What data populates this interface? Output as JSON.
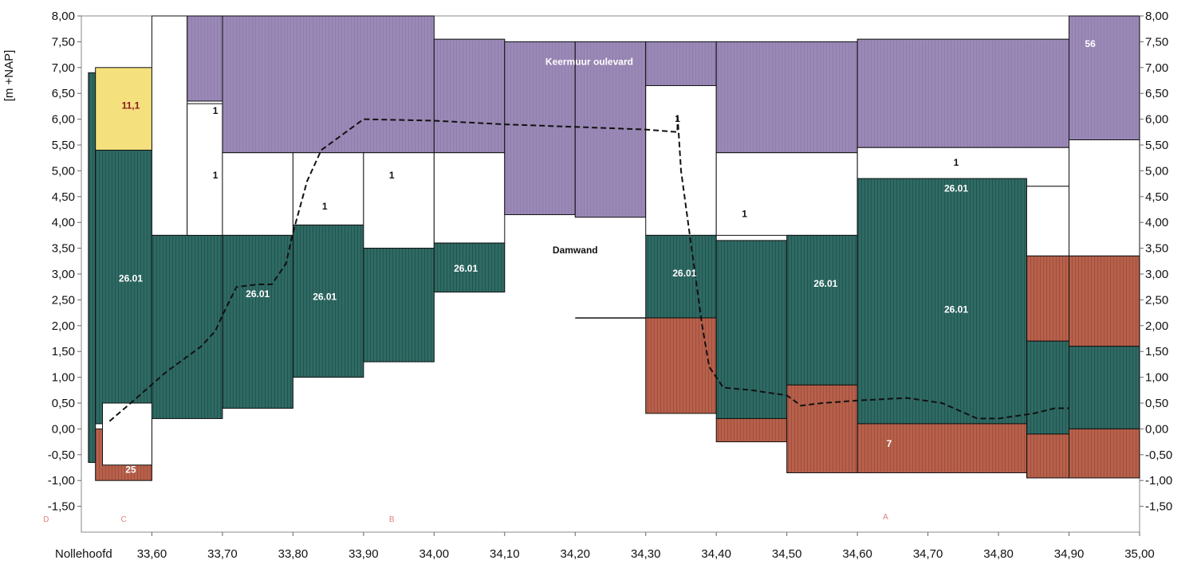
{
  "chart_data": {
    "type": "area",
    "ylabel": "[m +NAP]",
    "x_start_label": "Nollehoofd",
    "xlim": [
      33.5,
      35.0
    ],
    "ylim": [
      -2.0,
      8.0
    ],
    "x_ticks": [
      "33,60",
      "33,70",
      "33,80",
      "33,90",
      "34,00",
      "34,10",
      "34,20",
      "34,30",
      "34,40",
      "34,50",
      "34,60",
      "34,70",
      "34,80",
      "34,90",
      "35,00"
    ],
    "y_ticks": [
      "8,00",
      "7,50",
      "7,00",
      "6,50",
      "6,00",
      "5,50",
      "5,00",
      "4,50",
      "4,00",
      "3,50",
      "3,00",
      "2,50",
      "2,00",
      "1,50",
      "1,00",
      "0,50",
      "0,00",
      "-0,50",
      "-1,00",
      "-1,50"
    ],
    "colors": {
      "26.01": "#2e6a64",
      "clay": "#b7604b",
      "keermuur": "#9a88b6",
      "yellow": "#f5e07e",
      "fill_1": "#ffffff",
      "outline": "#111111",
      "hatch": "#1a3e3a",
      "zone_text": "#e08080"
    },
    "layers": [
      {
        "mat": "26.01",
        "x0": 33.51,
        "x1": 33.52,
        "top": 6.9,
        "bot": -0.65
      },
      {
        "mat": "yellow",
        "x0": 33.52,
        "x1": 33.6,
        "top": 7.0,
        "bot": 5.25
      },
      {
        "mat": "26.01",
        "x0": 33.52,
        "x1": 33.6,
        "top": 5.4,
        "bot": 0.1
      },
      {
        "mat": "clay",
        "x0": 33.52,
        "x1": 33.6,
        "top": 0.0,
        "bot": -1.0
      },
      {
        "mat": "fill_1",
        "x0": 33.53,
        "x1": 33.6,
        "top": 0.5,
        "bot": -0.7
      },
      {
        "mat": "fill_1",
        "x0": 33.6,
        "x1": 33.65,
        "top": 8.0,
        "bot": 3.75
      },
      {
        "mat": "26.01",
        "x0": 33.6,
        "x1": 33.7,
        "top": 3.75,
        "bot": 0.2
      },
      {
        "mat": "fill_1",
        "x0": 33.65,
        "x1": 33.7,
        "top": 6.3,
        "bot": 3.75
      },
      {
        "mat": "keermuur",
        "x0": 33.65,
        "x1": 33.8,
        "top": 8.0,
        "bot": 6.35
      },
      {
        "mat": "keermuur",
        "x0": 33.7,
        "x1": 34.0,
        "top": 8.0,
        "bot": 5.35
      },
      {
        "mat": "fill_1",
        "x0": 33.7,
        "x1": 33.8,
        "top": 5.35,
        "bot": 3.75
      },
      {
        "mat": "26.01",
        "x0": 33.7,
        "x1": 33.8,
        "top": 3.75,
        "bot": 0.4
      },
      {
        "mat": "fill_1",
        "x0": 33.8,
        "x1": 33.9,
        "top": 5.35,
        "bot": 3.95
      },
      {
        "mat": "26.01",
        "x0": 33.8,
        "x1": 33.9,
        "top": 3.95,
        "bot": 1.0
      },
      {
        "mat": "fill_1",
        "x0": 33.9,
        "x1": 34.0,
        "top": 5.35,
        "bot": 3.5
      },
      {
        "mat": "26.01",
        "x0": 33.9,
        "x1": 34.0,
        "top": 3.5,
        "bot": 1.3
      },
      {
        "mat": "keermuur",
        "x0": 34.0,
        "x1": 34.1,
        "top": 7.55,
        "bot": 5.35
      },
      {
        "mat": "fill_1",
        "x0": 34.0,
        "x1": 34.1,
        "top": 5.35,
        "bot": 3.6
      },
      {
        "mat": "26.01",
        "x0": 34.0,
        "x1": 34.1,
        "top": 3.6,
        "bot": 2.65
      },
      {
        "mat": "keermuur",
        "x0": 34.1,
        "x1": 34.2,
        "top": 7.5,
        "bot": 4.15
      },
      {
        "mat": "keermuur",
        "x0": 34.2,
        "x1": 34.3,
        "top": 7.5,
        "bot": 4.1
      },
      {
        "mat": "keermuur",
        "x0": 34.3,
        "x1": 34.4,
        "top": 7.5,
        "bot": 6.65
      },
      {
        "mat": "fill_1",
        "x0": 34.3,
        "x1": 34.4,
        "top": 6.65,
        "bot": 3.75
      },
      {
        "mat": "26.01",
        "x0": 34.3,
        "x1": 34.4,
        "top": 3.75,
        "bot": 2.15
      },
      {
        "mat": "clay",
        "x0": 34.3,
        "x1": 34.4,
        "top": 2.15,
        "bot": 0.3
      },
      {
        "mat": "keermuur",
        "x0": 34.4,
        "x1": 34.6,
        "top": 7.5,
        "bot": 5.35
      },
      {
        "mat": "fill_1",
        "x0": 34.4,
        "x1": 34.6,
        "top": 5.35,
        "bot": 3.75
      },
      {
        "mat": "26.01",
        "x0": 34.4,
        "x1": 34.5,
        "top": 3.65,
        "bot": 0.2
      },
      {
        "mat": "clay",
        "x0": 34.4,
        "x1": 34.5,
        "top": 0.2,
        "bot": -0.25
      },
      {
        "mat": "26.01",
        "x0": 34.5,
        "x1": 34.6,
        "top": 3.75,
        "bot": 0.85
      },
      {
        "mat": "clay",
        "x0": 34.5,
        "x1": 34.6,
        "top": 0.85,
        "bot": -0.85
      },
      {
        "mat": "keermuur",
        "x0": 34.6,
        "x1": 34.9,
        "top": 7.55,
        "bot": 5.45
      },
      {
        "mat": "fill_1",
        "x0": 34.6,
        "x1": 34.9,
        "top": 5.45,
        "bot": 4.7
      },
      {
        "mat": "26.01",
        "x0": 34.6,
        "x1": 34.84,
        "top": 4.85,
        "bot": 0.1
      },
      {
        "mat": "clay",
        "x0": 34.6,
        "x1": 34.84,
        "top": 0.1,
        "bot": -0.85
      },
      {
        "mat": "fill_1",
        "x0": 34.84,
        "x1": 34.9,
        "top": 4.7,
        "bot": 3.35
      },
      {
        "mat": "clay",
        "x0": 34.84,
        "x1": 34.9,
        "top": 3.35,
        "bot": 1.7
      },
      {
        "mat": "26.01",
        "x0": 34.84,
        "x1": 34.9,
        "top": 1.7,
        "bot": -0.1
      },
      {
        "mat": "clay",
        "x0": 34.84,
        "x1": 34.9,
        "top": -0.1,
        "bot": -0.95
      },
      {
        "mat": "keermuur",
        "x0": 34.9,
        "x1": 35.0,
        "top": 8.0,
        "bot": 5.6
      },
      {
        "mat": "fill_1",
        "x0": 34.9,
        "x1": 35.0,
        "top": 5.6,
        "bot": 3.35
      },
      {
        "mat": "clay",
        "x0": 34.9,
        "x1": 35.0,
        "top": 3.35,
        "bot": 1.6
      },
      {
        "mat": "26.01",
        "x0": 34.9,
        "x1": 35.0,
        "top": 1.6,
        "bot": 0.0
      },
      {
        "mat": "clay",
        "x0": 34.9,
        "x1": 35.0,
        "top": 0.0,
        "bot": -0.95
      }
    ],
    "dashed_line": {
      "x": [
        33.54,
        33.57,
        33.62,
        33.67,
        33.69,
        33.7,
        33.72,
        33.75,
        33.77,
        33.79,
        33.8,
        33.82,
        33.84,
        33.9,
        34.0,
        34.1,
        34.2,
        34.3,
        34.345,
        34.345,
        34.35,
        34.36,
        34.37,
        34.38,
        34.39,
        34.41,
        34.45,
        34.5,
        34.52,
        34.55,
        34.6,
        34.67,
        34.72,
        34.77,
        34.8,
        34.85,
        34.88,
        34.9
      ],
      "y": [
        0.15,
        0.5,
        1.1,
        1.6,
        1.9,
        2.2,
        2.75,
        2.8,
        2.8,
        3.2,
        3.8,
        4.8,
        5.4,
        6.0,
        5.97,
        5.9,
        5.85,
        5.8,
        5.75,
        6.1,
        5.0,
        4.0,
        3.0,
        2.0,
        1.2,
        0.8,
        0.75,
        0.65,
        0.45,
        0.5,
        0.55,
        0.6,
        0.5,
        0.2,
        0.2,
        0.3,
        0.4,
        0.4
      ]
    },
    "horizontal_segment": {
      "x0": 34.2,
      "x1": 34.3,
      "y": 2.15
    },
    "labels": [
      {
        "text": "11,1",
        "x": 33.57,
        "y": 6.2,
        "color": "#8b1a1a"
      },
      {
        "text": "26.01",
        "x": 33.57,
        "y": 2.85,
        "color": "#ffffff"
      },
      {
        "text": "25",
        "x": 33.57,
        "y": -0.85,
        "color": "#ffffff"
      },
      {
        "text": "1",
        "x": 33.69,
        "y": 6.1,
        "color": "#111111"
      },
      {
        "text": "1",
        "x": 33.69,
        "y": 4.85,
        "color": "#111111"
      },
      {
        "text": "26.01",
        "x": 33.75,
        "y": 2.55,
        "color": "#ffffff"
      },
      {
        "text": "1",
        "x": 33.845,
        "y": 4.25,
        "color": "#111111"
      },
      {
        "text": "1",
        "x": 33.94,
        "y": 4.85,
        "color": "#111111"
      },
      {
        "text": "26.01",
        "x": 33.845,
        "y": 2.5,
        "color": "#ffffff"
      },
      {
        "text": "26.01",
        "x": 34.045,
        "y": 3.05,
        "color": "#ffffff"
      },
      {
        "text": "Keermuur   oulevard",
        "x": 34.22,
        "y": 7.05,
        "color": "#ffffff"
      },
      {
        "text": "Damwand",
        "x": 34.2,
        "y": 3.4,
        "color": "#111111"
      },
      {
        "text": "1",
        "x": 34.345,
        "y": 5.95,
        "color": "#111111"
      },
      {
        "text": "26.01",
        "x": 34.355,
        "y": 2.95,
        "color": "#ffffff"
      },
      {
        "text": "1",
        "x": 34.44,
        "y": 4.1,
        "color": "#111111"
      },
      {
        "text": "26.01",
        "x": 34.555,
        "y": 2.75,
        "color": "#ffffff"
      },
      {
        "text": "1",
        "x": 34.74,
        "y": 5.1,
        "color": "#111111"
      },
      {
        "text": "26.01",
        "x": 34.74,
        "y": 4.6,
        "color": "#ffffff"
      },
      {
        "text": "26.01",
        "x": 34.74,
        "y": 2.25,
        "color": "#ffffff"
      },
      {
        "text": "7",
        "x": 34.645,
        "y": -0.35,
        "color": "#ffffff"
      },
      {
        "text": "56",
        "x": 34.93,
        "y": 7.4,
        "color": "#ffffff"
      }
    ],
    "zone_labels": [
      {
        "text": "D",
        "x": 33.45,
        "y": -1.8
      },
      {
        "text": "C",
        "x": 33.56,
        "y": -1.8
      },
      {
        "text": "B",
        "x": 33.94,
        "y": -1.8
      },
      {
        "text": "A",
        "x": 34.64,
        "y": -1.75
      }
    ]
  }
}
